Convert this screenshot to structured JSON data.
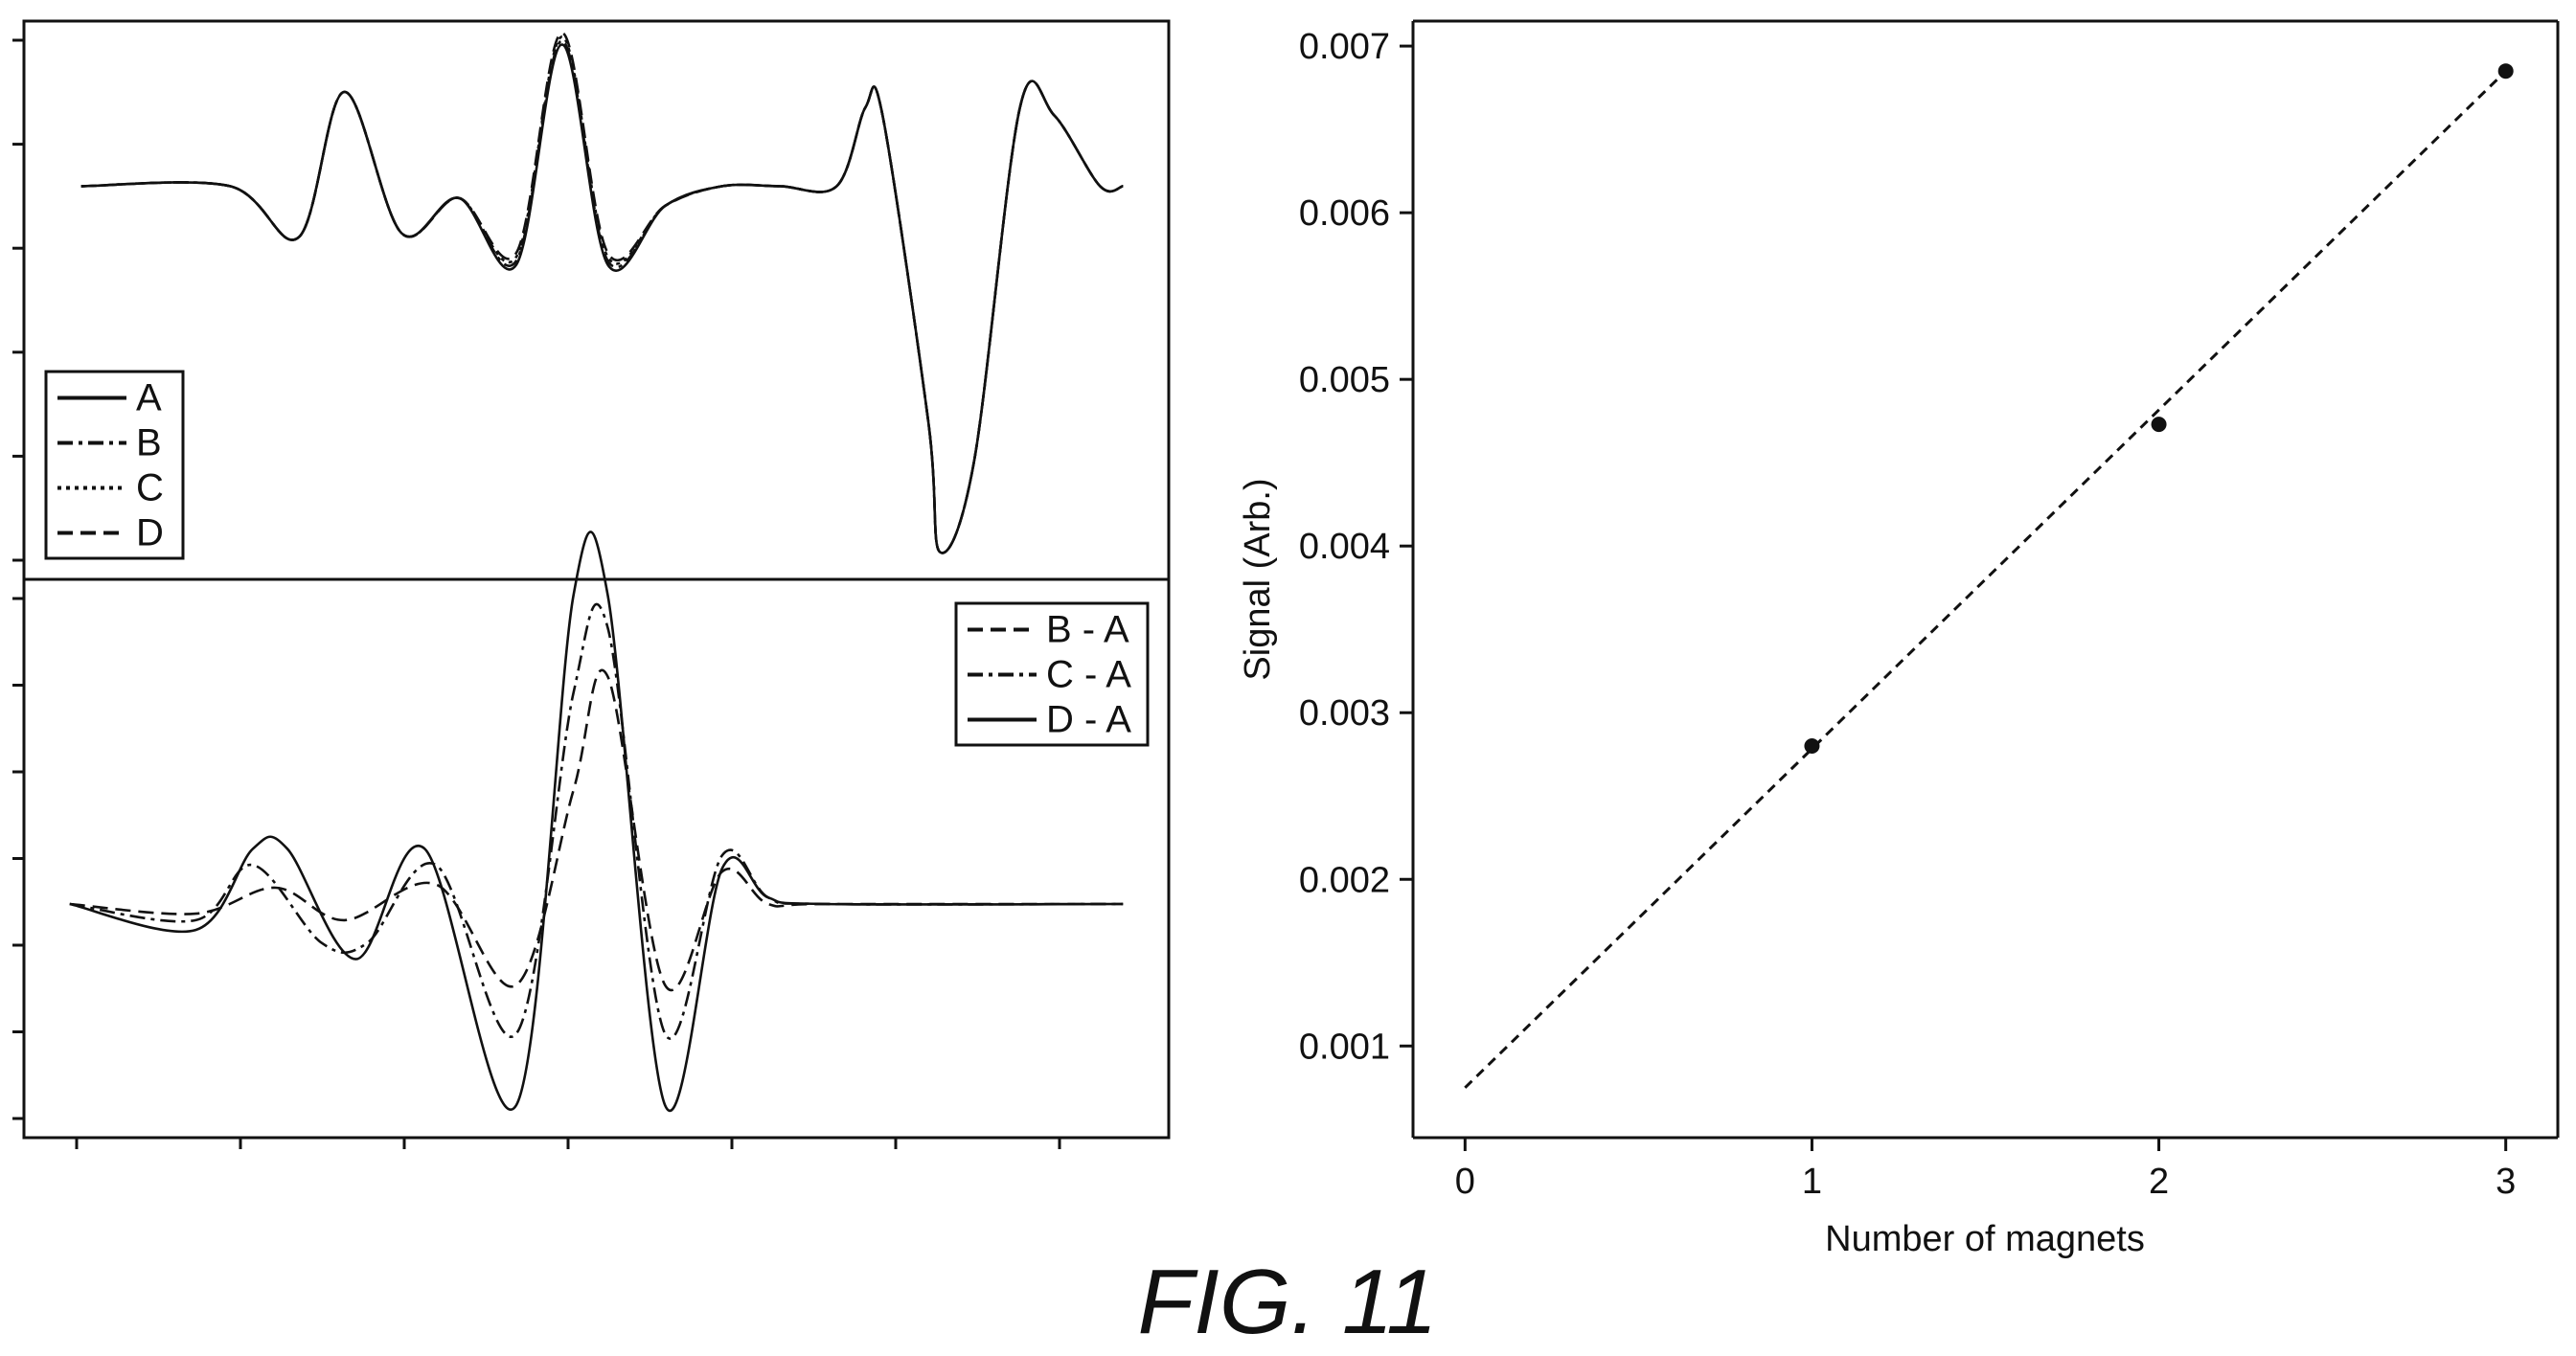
{
  "figure": {
    "caption": "FIG. 11"
  },
  "chart_data": [
    {
      "type": "line",
      "panel": "upper-left",
      "title": "",
      "xlabel": "",
      "ylabel": "",
      "tick_labels_shown": false,
      "x_ticks": 7,
      "y_ticks": 6,
      "legend": {
        "placement": "bottom-left",
        "entries": [
          {
            "name": "A",
            "style": "solid"
          },
          {
            "name": "B",
            "style": "dash-dot"
          },
          {
            "name": "C",
            "style": "dotted"
          },
          {
            "name": "D",
            "style": "dashed"
          }
        ]
      },
      "xlim": [
        0,
        1
      ],
      "ylim": [
        -1,
        0.42
      ],
      "series": [
        {
          "name": "A",
          "style": "solid",
          "x": [
            0.05,
            0.18,
            0.24,
            0.28,
            0.33,
            0.38,
            0.43,
            0.47,
            0.51,
            0.56,
            0.61,
            0.66,
            0.71,
            0.735,
            0.75,
            0.79,
            0.8,
            0.83,
            0.87,
            0.9,
            0.94,
            0.96
          ],
          "y": [
            0,
            0,
            -0.13,
            0.24,
            -0.12,
            -0.03,
            -0.2,
            0.36,
            -0.2,
            -0.05,
            0,
            0,
            0,
            0.2,
            0.18,
            -0.6,
            -0.93,
            -0.7,
            0.2,
            0.18,
            0,
            0
          ]
        },
        {
          "name": "B",
          "style": "dash-dot",
          "x": [
            0.05,
            0.18,
            0.24,
            0.28,
            0.33,
            0.38,
            0.43,
            0.47,
            0.51,
            0.56,
            0.61,
            0.66,
            0.71,
            0.735,
            0.75,
            0.79,
            0.8,
            0.83,
            0.87,
            0.9,
            0.94,
            0.96
          ],
          "y": [
            0,
            0,
            -0.13,
            0.24,
            -0.12,
            -0.03,
            -0.19,
            0.37,
            -0.19,
            -0.05,
            0,
            0,
            0,
            0.2,
            0.18,
            -0.6,
            -0.93,
            -0.7,
            0.2,
            0.18,
            0,
            0
          ]
        },
        {
          "name": "C",
          "style": "dotted",
          "x": [
            0.05,
            0.18,
            0.24,
            0.28,
            0.33,
            0.38,
            0.43,
            0.47,
            0.51,
            0.56,
            0.61,
            0.66,
            0.71,
            0.735,
            0.75,
            0.79,
            0.8,
            0.83,
            0.87,
            0.9,
            0.94,
            0.96
          ],
          "y": [
            0,
            0,
            -0.13,
            0.24,
            -0.12,
            -0.03,
            -0.18,
            0.38,
            -0.18,
            -0.05,
            0,
            0,
            0,
            0.2,
            0.18,
            -0.6,
            -0.93,
            -0.7,
            0.2,
            0.18,
            0,
            0
          ]
        },
        {
          "name": "D",
          "style": "dashed",
          "x": [
            0.05,
            0.18,
            0.24,
            0.28,
            0.33,
            0.38,
            0.43,
            0.47,
            0.51,
            0.56,
            0.61,
            0.66,
            0.71,
            0.735,
            0.75,
            0.79,
            0.8,
            0.83,
            0.87,
            0.9,
            0.94,
            0.96
          ],
          "y": [
            0,
            0,
            -0.13,
            0.24,
            -0.12,
            -0.03,
            -0.17,
            0.39,
            -0.17,
            -0.05,
            0,
            0,
            0,
            0.2,
            0.18,
            -0.6,
            -0.93,
            -0.7,
            0.2,
            0.18,
            0,
            0
          ]
        }
      ]
    },
    {
      "type": "line",
      "panel": "lower-left",
      "title": "",
      "xlabel": "",
      "ylabel": "",
      "tick_labels_shown": false,
      "x_ticks": 7,
      "y_ticks": 7,
      "legend": {
        "placement": "top-right",
        "entries": [
          {
            "name": "B - A",
            "style": "dashed"
          },
          {
            "name": "C - A",
            "style": "dash-dot"
          },
          {
            "name": "D - A",
            "style": "solid"
          }
        ]
      },
      "xlim": [
        0,
        1
      ],
      "ylim": [
        -0.72,
        1
      ],
      "series": [
        {
          "name": "B - A",
          "style": "dashed",
          "x": [
            0.04,
            0.15,
            0.22,
            0.28,
            0.36,
            0.43,
            0.48,
            0.51,
            0.56,
            0.61,
            0.65,
            0.7,
            0.96
          ],
          "y": [
            0,
            -0.03,
            0.05,
            -0.05,
            0.06,
            -0.25,
            0.35,
            0.7,
            -0.25,
            0.1,
            0,
            0,
            0
          ]
        },
        {
          "name": "C - A",
          "style": "dash-dot",
          "x": [
            0.04,
            0.15,
            0.2,
            0.26,
            0.3,
            0.36,
            0.43,
            0.48,
            0.51,
            0.56,
            0.61,
            0.65,
            0.7,
            0.96
          ],
          "y": [
            0,
            -0.05,
            0.12,
            -0.12,
            -0.12,
            0.12,
            -0.4,
            0.65,
            0.85,
            -0.4,
            0.15,
            0.02,
            0,
            0
          ]
        },
        {
          "name": "D - A",
          "style": "solid",
          "x": [
            0.04,
            0.15,
            0.2,
            0.23,
            0.29,
            0.35,
            0.43,
            0.48,
            0.51,
            0.56,
            0.61,
            0.65,
            0.7,
            0.96
          ],
          "y": [
            0,
            -0.08,
            0.17,
            0.17,
            -0.17,
            0.17,
            -0.62,
            0.95,
            0.95,
            -0.62,
            0.11,
            0.02,
            0,
            0
          ]
        }
      ]
    },
    {
      "type": "scatter",
      "panel": "right",
      "title": "",
      "xlabel": "Number of magnets",
      "ylabel": "Signal (Arb.)",
      "xlim": [
        -0.15,
        3.15
      ],
      "ylim": [
        0.00045,
        0.00715
      ],
      "x_ticks": [
        0,
        1,
        2,
        3
      ],
      "x_tick_labels": [
        "0",
        "1",
        "2",
        "3"
      ],
      "y_ticks": [
        0.001,
        0.002,
        0.003,
        0.004,
        0.005,
        0.006,
        0.007
      ],
      "y_tick_labels": [
        "0.001",
        "0.002",
        "0.003",
        "0.004",
        "0.005",
        "0.006",
        "0.007"
      ],
      "grid": false,
      "series": [
        {
          "name": "",
          "x": [
            1,
            2,
            3
          ],
          "y": [
            0.0028,
            0.00473,
            0.00685
          ]
        }
      ],
      "fit_line": {
        "style": "dashed",
        "x": [
          0,
          3
        ],
        "y": [
          0.00075,
          0.00685
        ]
      }
    }
  ]
}
